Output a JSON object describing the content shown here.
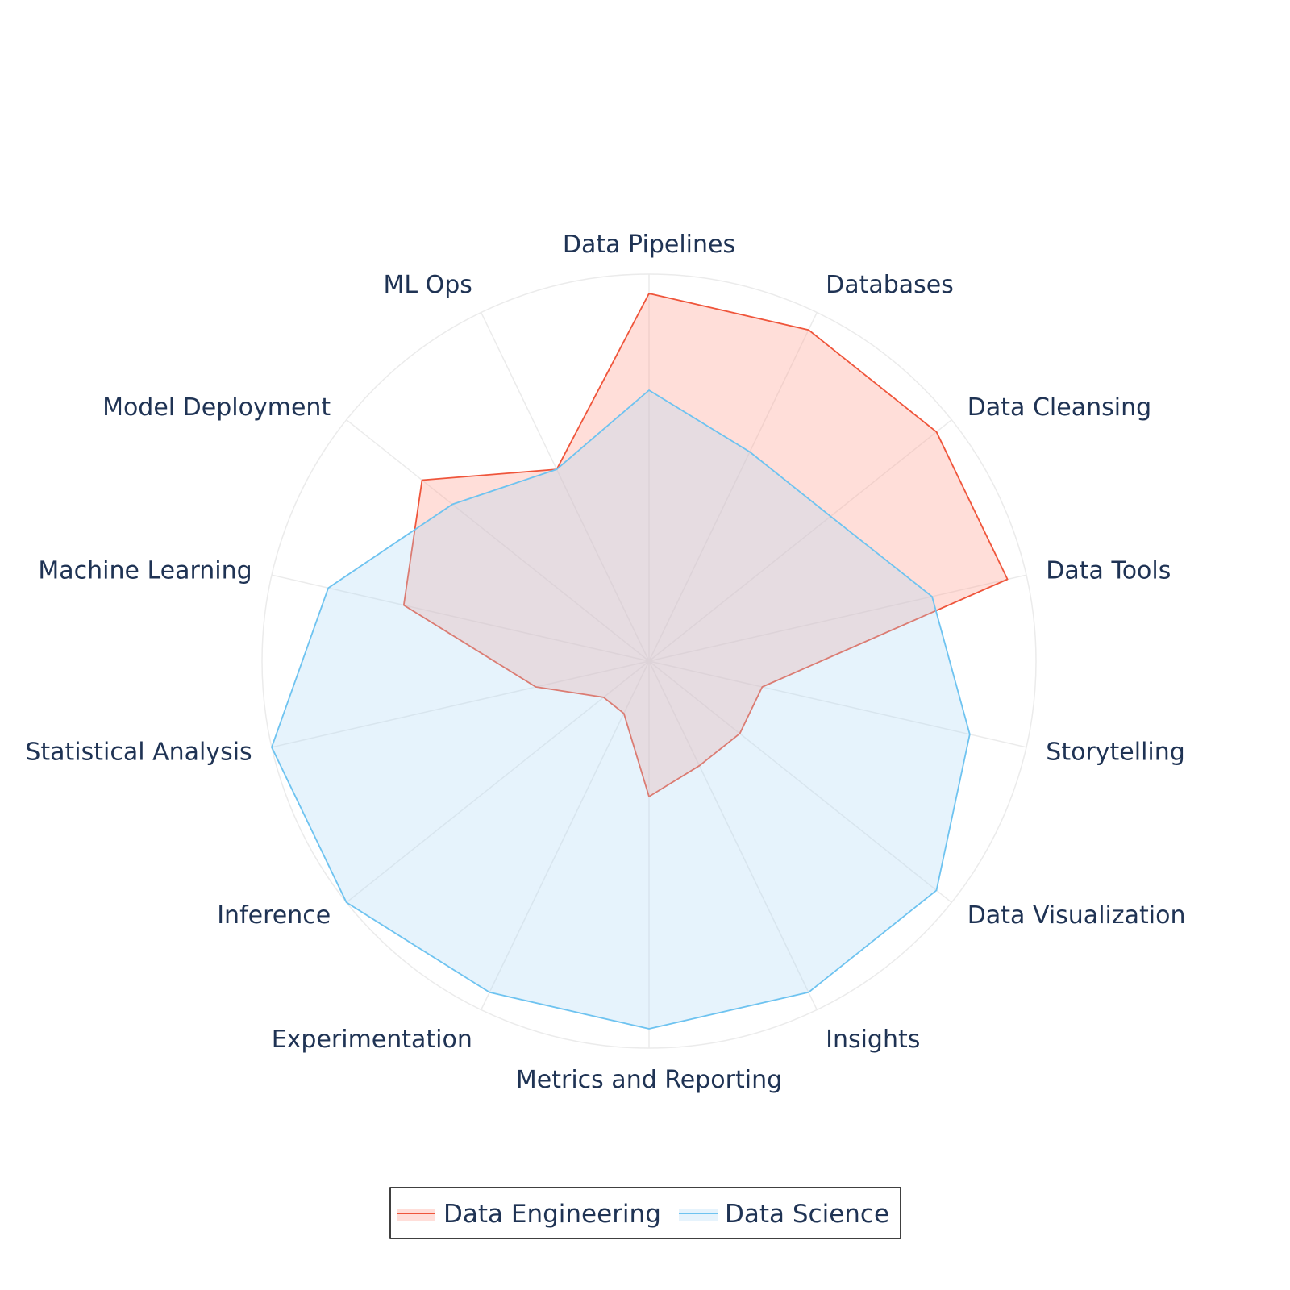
{
  "chart_data": {
    "type": "radar",
    "title": "",
    "categories": [
      "Data Pipelines",
      "Databases",
      "Data Cleansing",
      "Data Tools",
      "Storytelling",
      "Data Visualization",
      "Insights",
      "Metrics and Reporting",
      "Experimentation",
      "Inference",
      "Statistical Analysis",
      "Machine Learning",
      "Model Deployment",
      "ML Ops"
    ],
    "range": [
      0,
      10
    ],
    "grid": true,
    "legend_position": "bottom-center",
    "series": [
      {
        "name": "Data Engineering",
        "values": [
          9.5,
          9.5,
          9.5,
          9.5,
          3.0,
          3.0,
          3.0,
          3.5,
          1.5,
          1.5,
          3.0,
          6.5,
          7.5,
          5.5
        ],
        "line_color": "#ef553b",
        "fill_color": "rgba(255,160,145,0.35)"
      },
      {
        "name": "Data Science",
        "values": [
          7.0,
          6.0,
          6.0,
          7.5,
          8.5,
          9.5,
          9.5,
          9.5,
          9.5,
          10.0,
          10.0,
          8.5,
          6.5,
          5.5
        ],
        "line_color": "#6ec3f0",
        "fill_color": "rgba(173,216,245,0.3)"
      }
    ]
  }
}
